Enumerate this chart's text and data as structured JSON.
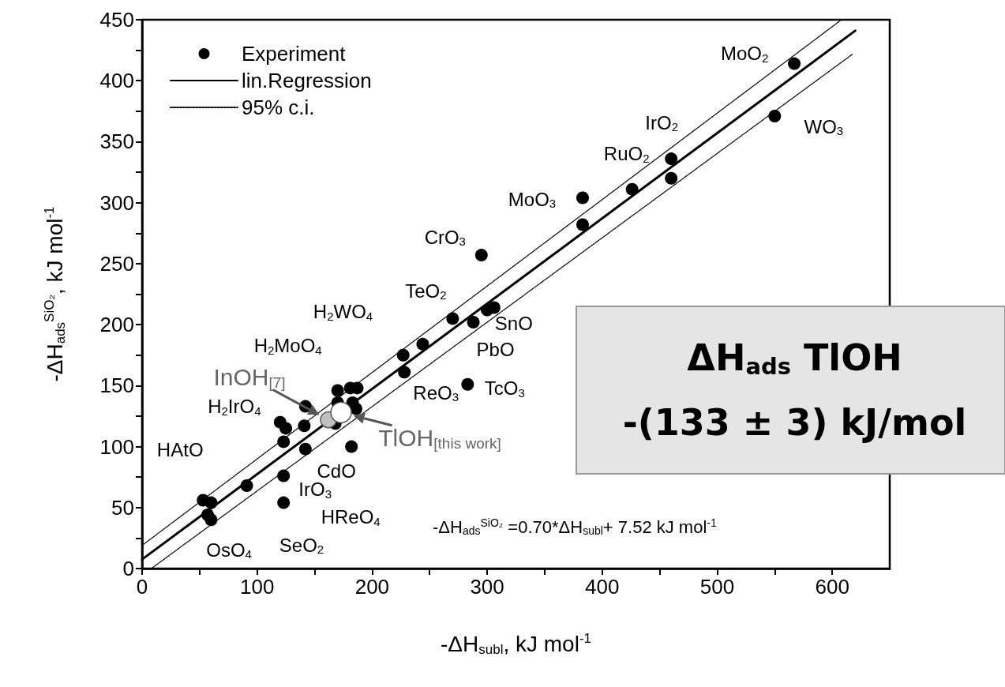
{
  "chart_data": {
    "type": "scatter",
    "xlabel": "-ΔH$_{subl}$, kJ mol$^{-1}$",
    "ylabel": "-ΔH$_{ads}$$^{SiO₂}$, kJ mol$^{-1}$",
    "xlim": [
      0,
      650
    ],
    "xticks": [
      0,
      100,
      200,
      300,
      400,
      500,
      600
    ],
    "ylim": [
      0,
      450
    ],
    "yticks": [
      0,
      50,
      100,
      150,
      200,
      250,
      300,
      350,
      400,
      450
    ],
    "grid": false,
    "legend": "top left",
    "series": [
      {
        "name": "Experiment",
        "type": "scatter",
        "marker": "circle",
        "color": "#000000",
        "x": [
          567,
          550,
          460,
          460,
          426,
          383,
          383,
          295,
          270,
          288,
          300,
          306,
          244,
          227,
          228,
          283,
          170,
          181,
          187,
          183,
          186,
          170,
          168,
          120,
          125,
          123,
          142,
          141,
          142,
          182,
          123,
          123,
          91,
          53,
          60,
          57,
          60
        ],
        "values": [
          414,
          371,
          336,
          320,
          311,
          304,
          282,
          257,
          205,
          202,
          212,
          214,
          184,
          175,
          161,
          151,
          146,
          148,
          148,
          136,
          131,
          136,
          119,
          120,
          115,
          104,
          133,
          117,
          98,
          100,
          76,
          54,
          68,
          56,
          54,
          44,
          40
        ]
      },
      {
        "type": "scatter",
        "marker": "circle",
        "color": "#c0c0c0",
        "x": [
          162
        ],
        "values": [
          122
        ]
      },
      {
        "type": "scatter",
        "marker": "circle",
        "color": "#ffffff",
        "x": [
          173
        ],
        "values": [
          128
        ]
      },
      {
        "name": "lin.Regression",
        "type": "line",
        "marker": "none",
        "color": "#000000",
        "line_style": "solid",
        "x": [
          0,
          620
        ],
        "values": [
          7.5,
          441
        ]
      },
      {
        "name": "95% c.i.",
        "type": "line",
        "marker": "none",
        "color": "#000000",
        "line_style": "dotted",
        "x": [
          0,
          608
        ],
        "values": [
          19,
          450
        ]
      },
      {
        "type": "line",
        "marker": "none",
        "color": "#000000",
        "line_style": "dotted",
        "x": [
          8,
          618
        ],
        "values": [
          0,
          422
        ]
      }
    ],
    "annotations": [
      {
        "text": "MoO$_{2}$",
        "x": 567,
        "y": 414
      },
      {
        "text": "WO$_{3}$",
        "x": 550,
        "y": 371
      },
      {
        "text": "IrO$_{2}$",
        "x": 460,
        "y": 336
      },
      {
        "text": "RuO$_{2}$",
        "x": 426,
        "y": 311
      },
      {
        "text": "MoO$_{3}$",
        "x": 383,
        "y": 304
      },
      {
        "text": "CrO$_{3}$",
        "x": 295,
        "y": 257
      },
      {
        "text": "TeO$_{2}$",
        "x": 270,
        "y": 205
      },
      {
        "text": "H$_{2}$WO$_{4}$",
        "x": 244,
        "y": 184
      },
      {
        "text": "SnO",
        "x": 306,
        "y": 214
      },
      {
        "text": "PbO",
        "x": 288,
        "y": 202
      },
      {
        "text": "H$_{2}$MoO$_{4}$",
        "x": 170,
        "y": 146
      },
      {
        "text": "ReO$_{3}$",
        "x": 228,
        "y": 161
      },
      {
        "text": "TcO$_{3}$",
        "x": 283,
        "y": 151
      },
      {
        "text": "InOH$_{[7]}$",
        "x": 162,
        "y": 122
      },
      {
        "text": "TlOH$_{[this work]}$",
        "x": 173,
        "y": 128
      },
      {
        "text": "H$_{2}$IrO$_{4}$",
        "x": 120,
        "y": 120
      },
      {
        "text": "CdO",
        "x": 182,
        "y": 100
      },
      {
        "text": "HAtO",
        "x": 53,
        "y": 56
      },
      {
        "text": "IrO$_{3}$",
        "x": 123,
        "y": 76
      },
      {
        "text": "HReO$_{4}$",
        "x": 123,
        "y": 54
      },
      {
        "text": "OsO$_{4}$",
        "x": 57,
        "y": 44
      },
      "SeO$_{2}$",
      "-ΔH$_{ads}$$^{SiO₂}$ =0.70*ΔH$_{subl}$+ 7.52 kJ mol$^{-1}$",
      "ΔH$_{ads}$ TlOH",
      "-(133 ± 3) kJ/mol"
    ]
  }
}
